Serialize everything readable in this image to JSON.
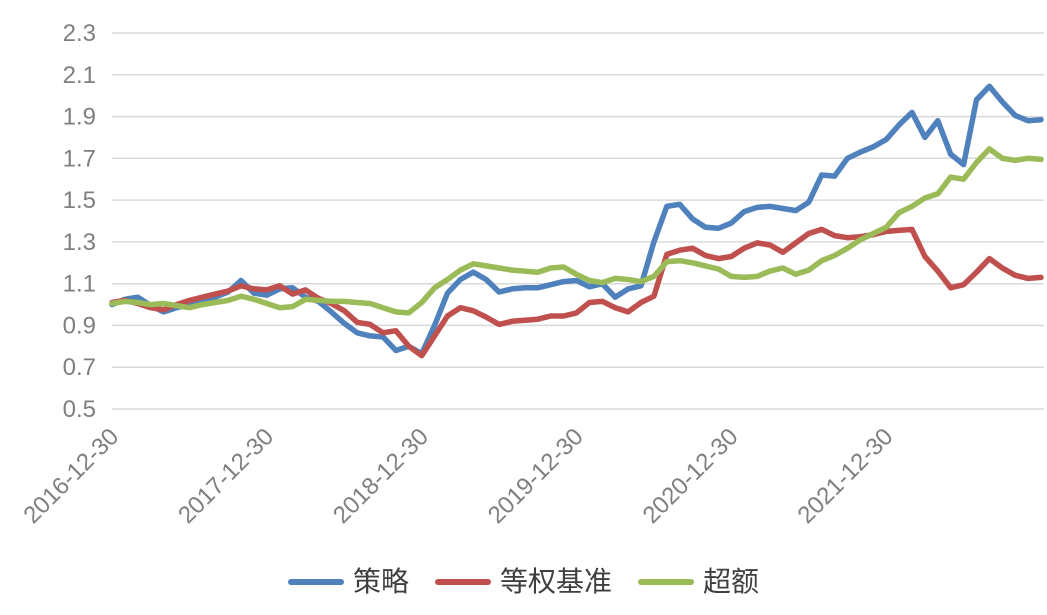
{
  "chart_data": {
    "type": "line",
    "title": "",
    "xlabel": "",
    "ylabel": "",
    "x_tick_labels": [
      "2016-12-30",
      "2017-12-30",
      "2018-12-30",
      "2019-12-30",
      "2020-12-30",
      "2021-12-30"
    ],
    "x_start": "2016-12-30",
    "sampling": "monthly, 6 years (73 points), data extends one year past last tick",
    "ylim": [
      0.5,
      2.3
    ],
    "y_ticks": [
      2.3,
      2.1,
      1.9,
      1.7,
      1.5,
      1.3,
      1.1,
      0.9,
      0.7,
      0.5
    ],
    "grid": "horizontal",
    "legend_position": "bottom",
    "axis_label_color": "#7F7F7F",
    "gridline_color": "#D9D9D9",
    "series": [
      {
        "name": "策略",
        "color": "#4F81BD",
        "values": [
          1.0,
          1.025,
          1.035,
          0.995,
          0.965,
          0.985,
          1.0,
          1.015,
          1.035,
          1.06,
          1.115,
          1.055,
          1.045,
          1.075,
          1.08,
          1.035,
          1.015,
          0.965,
          0.91,
          0.865,
          0.85,
          0.845,
          0.78,
          0.8,
          0.765,
          0.9,
          1.055,
          1.12,
          1.155,
          1.12,
          1.06,
          1.075,
          1.08,
          1.08,
          1.095,
          1.11,
          1.115,
          1.085,
          1.1,
          1.035,
          1.075,
          1.09,
          1.3,
          1.47,
          1.48,
          1.41,
          1.37,
          1.365,
          1.39,
          1.445,
          1.465,
          1.47,
          1.46,
          1.45,
          1.49,
          1.62,
          1.615,
          1.7,
          1.73,
          1.755,
          1.79,
          1.86,
          1.92,
          1.8,
          1.88,
          1.72,
          1.67,
          1.98,
          2.045,
          1.97,
          1.905,
          1.88,
          1.885
        ]
      },
      {
        "name": "等权基准",
        "color": "#C0504D",
        "values": [
          1.01,
          1.02,
          1.005,
          0.985,
          0.975,
          1.0,
          1.02,
          1.035,
          1.05,
          1.065,
          1.09,
          1.075,
          1.07,
          1.09,
          1.05,
          1.07,
          1.03,
          1.005,
          0.97,
          0.915,
          0.905,
          0.865,
          0.875,
          0.8,
          0.755,
          0.85,
          0.945,
          0.985,
          0.97,
          0.94,
          0.905,
          0.92,
          0.925,
          0.93,
          0.945,
          0.945,
          0.96,
          1.01,
          1.015,
          0.985,
          0.965,
          1.01,
          1.04,
          1.24,
          1.26,
          1.27,
          1.235,
          1.22,
          1.23,
          1.27,
          1.295,
          1.285,
          1.25,
          1.295,
          1.34,
          1.36,
          1.33,
          1.32,
          1.325,
          1.335,
          1.35,
          1.355,
          1.36,
          1.23,
          1.16,
          1.08,
          1.095,
          1.155,
          1.22,
          1.175,
          1.14,
          1.125,
          1.13
        ]
      },
      {
        "name": "超额",
        "color": "#9BBB59",
        "values": [
          1.005,
          1.015,
          1.01,
          1.0,
          1.005,
          0.995,
          0.985,
          1.0,
          1.01,
          1.02,
          1.04,
          1.025,
          1.005,
          0.985,
          0.99,
          1.025,
          1.02,
          1.015,
          1.015,
          1.01,
          1.005,
          0.985,
          0.965,
          0.96,
          1.01,
          1.08,
          1.12,
          1.165,
          1.195,
          1.185,
          1.175,
          1.165,
          1.16,
          1.155,
          1.175,
          1.18,
          1.145,
          1.115,
          1.105,
          1.125,
          1.12,
          1.11,
          1.135,
          1.205,
          1.21,
          1.2,
          1.185,
          1.17,
          1.135,
          1.13,
          1.135,
          1.16,
          1.175,
          1.145,
          1.165,
          1.21,
          1.235,
          1.27,
          1.31,
          1.34,
          1.37,
          1.44,
          1.47,
          1.51,
          1.53,
          1.61,
          1.6,
          1.68,
          1.745,
          1.7,
          1.69,
          1.7,
          1.695
        ]
      }
    ]
  },
  "legend": {
    "items": [
      "策略",
      "等权基准",
      "超额"
    ]
  }
}
